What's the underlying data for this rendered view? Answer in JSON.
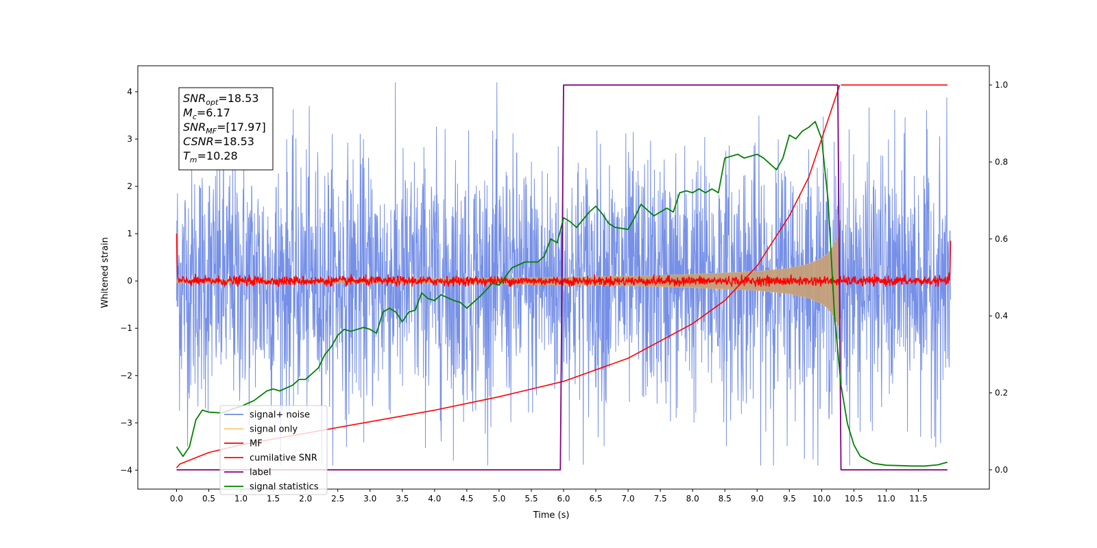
{
  "chart_data": {
    "type": "line",
    "xlabel": "Time (s)",
    "ylabel": "Whitened strain",
    "xlim": [
      -0.6,
      12.6
    ],
    "ylim_left": [
      -4.4,
      4.55
    ],
    "ylim_right": [
      -0.05,
      1.05
    ],
    "xticks": [
      "0.0",
      "0.5",
      "1.0",
      "1.5",
      "2.0",
      "2.5",
      "3.0",
      "3.5",
      "4.0",
      "4.5",
      "5.0",
      "5.5",
      "6.0",
      "6.5",
      "7.0",
      "7.5",
      "8.0",
      "8.5",
      "9.0",
      "9.5",
      "10.0",
      "10.5",
      "11.0",
      "11.5"
    ],
    "yticks_left": [
      -4,
      -3,
      -2,
      -1,
      0,
      1,
      2,
      3,
      4
    ],
    "yticks_right": [
      "0.0",
      "0.2",
      "0.4",
      "0.6",
      "0.8",
      "1.0"
    ],
    "annotation": {
      "lines": [
        {
          "var": "SNR",
          "sub": "opt",
          "value": "=18.53"
        },
        {
          "var": "M",
          "sub": "c",
          "value": "=6.17"
        },
        {
          "var": "SNR",
          "sub": "MF",
          "value": "=[17.97]"
        },
        {
          "var": "CSNR",
          "sub": "",
          "value": "=18.53"
        },
        {
          "var": "T",
          "sub": "m",
          "value": "=10.28"
        }
      ]
    },
    "legend": {
      "placement": "lower-left",
      "entries": [
        {
          "label": "signal+ noise",
          "color": "#6f8ae6"
        },
        {
          "label": "signal only",
          "color": "#f5c97a"
        },
        {
          "label": "MF",
          "color": "#ff0000"
        },
        {
          "label": "cumilative SNR",
          "color": "#ff0000"
        },
        {
          "label": "label",
          "color": "#800080"
        },
        {
          "label": "signal statistics",
          "color": "#008000"
        }
      ]
    },
    "series": [
      {
        "name": "signal+ noise",
        "axis": "left",
        "color": "#6f8ae6",
        "kind": "noise",
        "x_range": [
          0.0,
          12.0
        ],
        "typical_range": [
          -1.6,
          1.6
        ],
        "peak_range": [
          -3.9,
          4.2
        ]
      },
      {
        "name": "signal only",
        "axis": "left",
        "color": "#c4a07a",
        "kind": "chirp-envelope",
        "x": [
          0.0,
          2.0,
          4.0,
          6.0,
          7.0,
          8.0,
          9.0,
          9.5,
          9.8,
          10.0,
          10.1,
          10.2,
          10.25,
          10.28,
          10.3,
          12.0
        ],
        "amplitude": [
          0.03,
          0.04,
          0.05,
          0.08,
          0.1,
          0.14,
          0.2,
          0.27,
          0.36,
          0.48,
          0.58,
          0.78,
          0.92,
          1.0,
          0.0,
          0.0
        ]
      },
      {
        "name": "MF",
        "axis": "left",
        "color": "#ff0000",
        "kind": "noise",
        "x_range": [
          0.0,
          12.0
        ],
        "typical_range": [
          -0.08,
          0.08
        ],
        "peak_range": [
          -0.12,
          0.15
        ],
        "edge_values": [
          {
            "x": 0.0,
            "y": 1.0
          },
          {
            "x": 12.0,
            "y": 0.85
          }
        ]
      },
      {
        "name": "cumilative SNR",
        "axis": "right",
        "color": "#ff0000",
        "x": [
          0.0,
          0.05,
          0.5,
          1.0,
          2.0,
          3.0,
          4.0,
          5.0,
          6.0,
          7.0,
          8.0,
          8.5,
          9.0,
          9.5,
          9.8,
          10.0,
          10.1,
          10.2,
          10.28
        ],
        "y": [
          0.005,
          0.015,
          0.045,
          0.065,
          0.095,
          0.125,
          0.155,
          0.19,
          0.23,
          0.29,
          0.38,
          0.44,
          0.53,
          0.66,
          0.76,
          0.86,
          0.91,
          0.96,
          1.0
        ]
      },
      {
        "name": "label",
        "axis": "right",
        "color": "#800080",
        "x": [
          0.0,
          5.95,
          6.0,
          10.25,
          10.3,
          11.95
        ],
        "y": [
          0.0,
          0.0,
          1.0,
          1.0,
          0.0,
          0.0
        ]
      },
      {
        "name": "signal statistics",
        "axis": "right",
        "color": "#008000",
        "x": [
          0.0,
          0.1,
          0.2,
          0.3,
          0.4,
          0.5,
          0.7,
          0.9,
          1.0,
          1.2,
          1.4,
          1.5,
          1.6,
          1.8,
          1.9,
          2.0,
          2.2,
          2.3,
          2.4,
          2.5,
          2.6,
          2.7,
          2.9,
          3.0,
          3.1,
          3.2,
          3.3,
          3.4,
          3.5,
          3.6,
          3.7,
          3.8,
          3.9,
          4.0,
          4.1,
          4.3,
          4.4,
          4.5,
          4.7,
          4.9,
          5.0,
          5.2,
          5.4,
          5.6,
          5.7,
          5.8,
          5.9,
          6.0,
          6.1,
          6.2,
          6.4,
          6.5,
          6.6,
          6.7,
          6.8,
          7.0,
          7.1,
          7.2,
          7.4,
          7.6,
          7.7,
          7.8,
          7.9,
          8.0,
          8.1,
          8.2,
          8.3,
          8.4,
          8.5,
          8.6,
          8.7,
          8.8,
          8.9,
          9.0,
          9.1,
          9.3,
          9.4,
          9.5,
          9.6,
          9.7,
          9.8,
          9.9,
          10.0,
          10.1,
          10.2,
          10.3,
          10.4,
          10.5,
          10.6,
          10.8,
          11.0,
          11.2,
          11.4,
          11.6,
          11.8,
          11.95
        ],
        "y": [
          0.06,
          0.035,
          0.06,
          0.13,
          0.155,
          0.15,
          0.148,
          0.16,
          0.165,
          0.18,
          0.205,
          0.21,
          0.205,
          0.22,
          0.235,
          0.235,
          0.265,
          0.3,
          0.32,
          0.35,
          0.365,
          0.36,
          0.37,
          0.365,
          0.355,
          0.41,
          0.42,
          0.41,
          0.385,
          0.41,
          0.415,
          0.46,
          0.445,
          0.44,
          0.455,
          0.44,
          0.435,
          0.42,
          0.45,
          0.485,
          0.48,
          0.525,
          0.54,
          0.54,
          0.555,
          0.6,
          0.59,
          0.655,
          0.645,
          0.63,
          0.67,
          0.685,
          0.665,
          0.64,
          0.63,
          0.625,
          0.655,
          0.69,
          0.66,
          0.68,
          0.67,
          0.72,
          0.725,
          0.72,
          0.73,
          0.72,
          0.73,
          0.72,
          0.81,
          0.815,
          0.82,
          0.81,
          0.815,
          0.82,
          0.81,
          0.78,
          0.81,
          0.87,
          0.86,
          0.88,
          0.89,
          0.905,
          0.86,
          0.7,
          0.4,
          0.22,
          0.12,
          0.065,
          0.035,
          0.017,
          0.012,
          0.011,
          0.01,
          0.01,
          0.013,
          0.02
        ]
      }
    ]
  }
}
